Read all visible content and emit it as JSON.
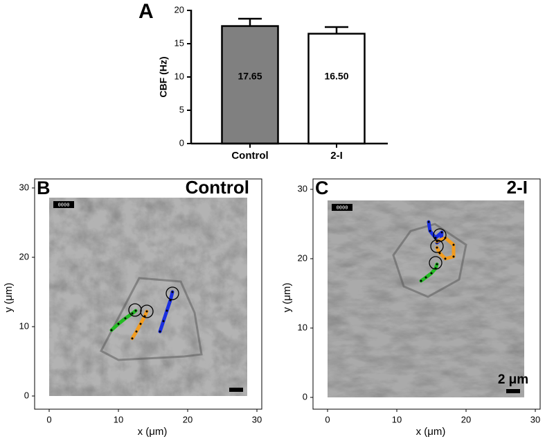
{
  "chart_data": [
    {
      "type": "bar",
      "panel_label": "A",
      "categories": [
        "Control",
        "2-I"
      ],
      "values": [
        17.65,
        16.5
      ],
      "value_labels": [
        "17.65",
        "16.50"
      ],
      "errors": [
        1.1,
        1.0
      ],
      "colors": [
        "#808080",
        "#ffffff"
      ],
      "ylabel": "CBF (Hz)",
      "ylim": [
        0,
        20
      ],
      "yticks": [
        0,
        5,
        10,
        15,
        20
      ]
    },
    {
      "type": "image",
      "panel_label": "B",
      "title": "Control",
      "timestamp": "0000",
      "xlabel": "x (μm)",
      "ylabel": "y (μm)",
      "xlim": [
        -2.1,
        30.7
      ],
      "ylim": [
        -1.9,
        31.3
      ],
      "xticks": [
        0,
        10,
        20,
        30
      ],
      "yticks": [
        0,
        10,
        20,
        30
      ],
      "image_extent": [
        0,
        28.6,
        0,
        28.6
      ],
      "series": [
        {
          "color": "#22bb22",
          "x": [
            9,
            10,
            11,
            12,
            12.5
          ],
          "y": [
            9.5,
            10.4,
            11.2,
            11.9,
            12.3
          ]
        },
        {
          "color": "#f39c1e",
          "x": [
            12,
            12.6,
            13.2,
            13.8,
            14.1
          ],
          "y": [
            8.3,
            9.3,
            10.4,
            11.5,
            12.2
          ]
        },
        {
          "color": "#1a2ee0",
          "x": [
            16,
            16.5,
            17,
            17.5,
            17.8
          ],
          "y": [
            9.3,
            10.8,
            12.3,
            13.8,
            15
          ]
        }
      ],
      "circles": {
        "x": [
          12.4,
          14.1,
          17.8
        ],
        "y": [
          12.4,
          12.2,
          14.8
        ]
      }
    },
    {
      "type": "image",
      "panel_label": "C",
      "title": "2-I",
      "timestamp": "0000",
      "scale_label": "2 μm",
      "xlabel": "x (μm)",
      "ylabel": "y (μm)",
      "xlim": [
        -2.1,
        30.7
      ],
      "ylim": [
        -1.7,
        31.5
      ],
      "xticks": [
        0,
        10,
        20,
        30
      ],
      "yticks": [
        0,
        10,
        20,
        30
      ],
      "image_extent": [
        0,
        28.4,
        0,
        28.4
      ],
      "series": [
        {
          "color": "#1a2ee0",
          "x": [
            14.6,
            14.8,
            15.6,
            16.5,
            16.4,
            15.8
          ],
          "y": [
            25.3,
            24,
            23,
            23.8,
            22.8,
            22.3
          ]
        },
        {
          "color": "#f39c1e",
          "x": [
            15.8,
            17,
            18.2,
            18.2,
            17,
            16.2,
            15.8
          ],
          "y": [
            22.5,
            23,
            22,
            20.3,
            20,
            20.8,
            21.6
          ]
        },
        {
          "color": "#22bb22",
          "x": [
            13.5,
            14.2,
            15,
            15.6,
            15.8
          ],
          "y": [
            16.8,
            17.3,
            17.9,
            18.6,
            19.2
          ]
        }
      ],
      "circles": {
        "x": [
          16.2,
          15.8,
          15.6
        ],
        "y": [
          23.4,
          21.8,
          19.4
        ]
      }
    }
  ]
}
